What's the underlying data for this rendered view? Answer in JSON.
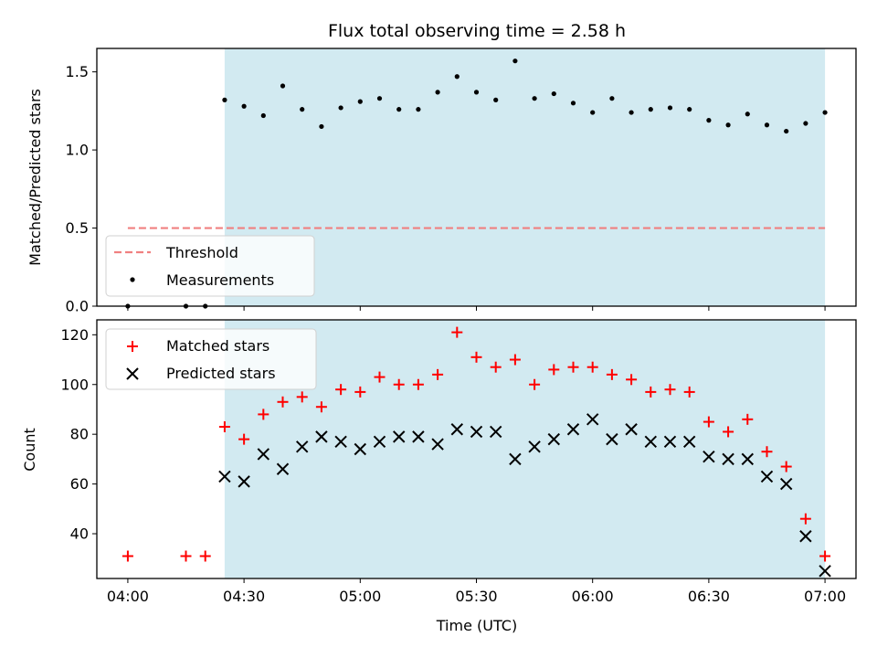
{
  "chart_data": [
    {
      "type": "scatter",
      "title": "Flux total observing time = 2.58 h",
      "xlabel": "",
      "ylabel": "Matched/Predicted stars",
      "ylim": [
        0,
        1.65
      ],
      "yticks": [
        0.0,
        0.5,
        1.0,
        1.5
      ],
      "ytick_labels": [
        "0.0",
        "0.5",
        "1.0",
        "1.5"
      ],
      "x_range": [
        "03:52",
        "07:08"
      ],
      "xticks": [
        "04:00",
        "04:30",
        "05:00",
        "05:30",
        "06:00",
        "06:30",
        "07:00"
      ],
      "shaded_span": [
        "04:25",
        "07:00"
      ],
      "shade_color": "#add8e6",
      "threshold": {
        "name": "Threshold",
        "value": 0.5,
        "from": "04:00",
        "to": "07:00",
        "color": "#f08080"
      },
      "legend_position": "lower left",
      "series": [
        {
          "name": "Measurements",
          "marker": "dot",
          "color": "#000000",
          "x": [
            "04:00",
            "04:15",
            "04:20",
            "04:25",
            "04:30",
            "04:35",
            "04:40",
            "04:45",
            "04:50",
            "04:55",
            "05:00",
            "05:05",
            "05:10",
            "05:15",
            "05:20",
            "05:25",
            "05:30",
            "05:35",
            "05:40",
            "05:45",
            "05:50",
            "05:55",
            "06:00",
            "06:05",
            "06:10",
            "06:15",
            "06:20",
            "06:25",
            "06:30",
            "06:35",
            "06:40",
            "06:45",
            "06:50",
            "06:55",
            "07:00"
          ],
          "y": [
            0.0,
            0.0,
            0.0,
            1.32,
            1.28,
            1.22,
            1.41,
            1.26,
            1.15,
            1.27,
            1.31,
            1.33,
            1.26,
            1.26,
            1.37,
            1.47,
            1.37,
            1.32,
            1.57,
            1.33,
            1.36,
            1.3,
            1.24,
            1.33,
            1.24,
            1.26,
            1.27,
            1.26,
            1.19,
            1.16,
            1.23,
            1.16,
            1.12,
            1.17,
            1.24
          ]
        }
      ]
    },
    {
      "type": "scatter",
      "title": "",
      "xlabel": "Time (UTC)",
      "ylabel": "Count",
      "ylim": [
        22,
        126
      ],
      "yticks": [
        40,
        60,
        80,
        100,
        120
      ],
      "ytick_labels": [
        "40",
        "60",
        "80",
        "100",
        "120"
      ],
      "x_range": [
        "03:52",
        "07:08"
      ],
      "xticks": [
        "04:00",
        "04:30",
        "05:00",
        "05:30",
        "06:00",
        "06:30",
        "07:00"
      ],
      "xtick_labels": [
        "04:00",
        "04:30",
        "05:00",
        "05:30",
        "06:00",
        "06:30",
        "07:00"
      ],
      "shaded_span": [
        "04:25",
        "07:00"
      ],
      "shade_color": "#add8e6",
      "legend_position": "upper left",
      "series": [
        {
          "name": "Matched stars",
          "marker": "plus",
          "color": "#ff0000",
          "x": [
            "04:00",
            "04:15",
            "04:20",
            "04:25",
            "04:30",
            "04:35",
            "04:40",
            "04:45",
            "04:50",
            "04:55",
            "05:00",
            "05:05",
            "05:10",
            "05:15",
            "05:20",
            "05:25",
            "05:30",
            "05:35",
            "05:40",
            "05:45",
            "05:50",
            "05:55",
            "06:00",
            "06:05",
            "06:10",
            "06:15",
            "06:20",
            "06:25",
            "06:30",
            "06:35",
            "06:40",
            "06:45",
            "06:50",
            "06:55",
            "07:00"
          ],
          "y": [
            31,
            31,
            31,
            83,
            78,
            88,
            93,
            95,
            91,
            98,
            97,
            103,
            100,
            100,
            104,
            121,
            111,
            107,
            110,
            100,
            106,
            107,
            107,
            104,
            102,
            97,
            98,
            97,
            85,
            81,
            86,
            73,
            67,
            46,
            31
          ]
        },
        {
          "name": "Predicted stars",
          "marker": "x",
          "color": "#000000",
          "x": [
            "04:25",
            "04:30",
            "04:35",
            "04:40",
            "04:45",
            "04:50",
            "04:55",
            "05:00",
            "05:05",
            "05:10",
            "05:15",
            "05:20",
            "05:25",
            "05:30",
            "05:35",
            "05:40",
            "05:45",
            "05:50",
            "05:55",
            "06:00",
            "06:05",
            "06:10",
            "06:15",
            "06:20",
            "06:25",
            "06:30",
            "06:35",
            "06:40",
            "06:45",
            "06:50",
            "06:55",
            "07:00"
          ],
          "y": [
            63,
            61,
            72,
            66,
            75,
            79,
            77,
            74,
            77,
            79,
            79,
            76,
            82,
            81,
            81,
            70,
            75,
            78,
            82,
            86,
            78,
            82,
            77,
            77,
            77,
            71,
            70,
            70,
            63,
            60,
            39,
            25
          ]
        }
      ]
    }
  ]
}
